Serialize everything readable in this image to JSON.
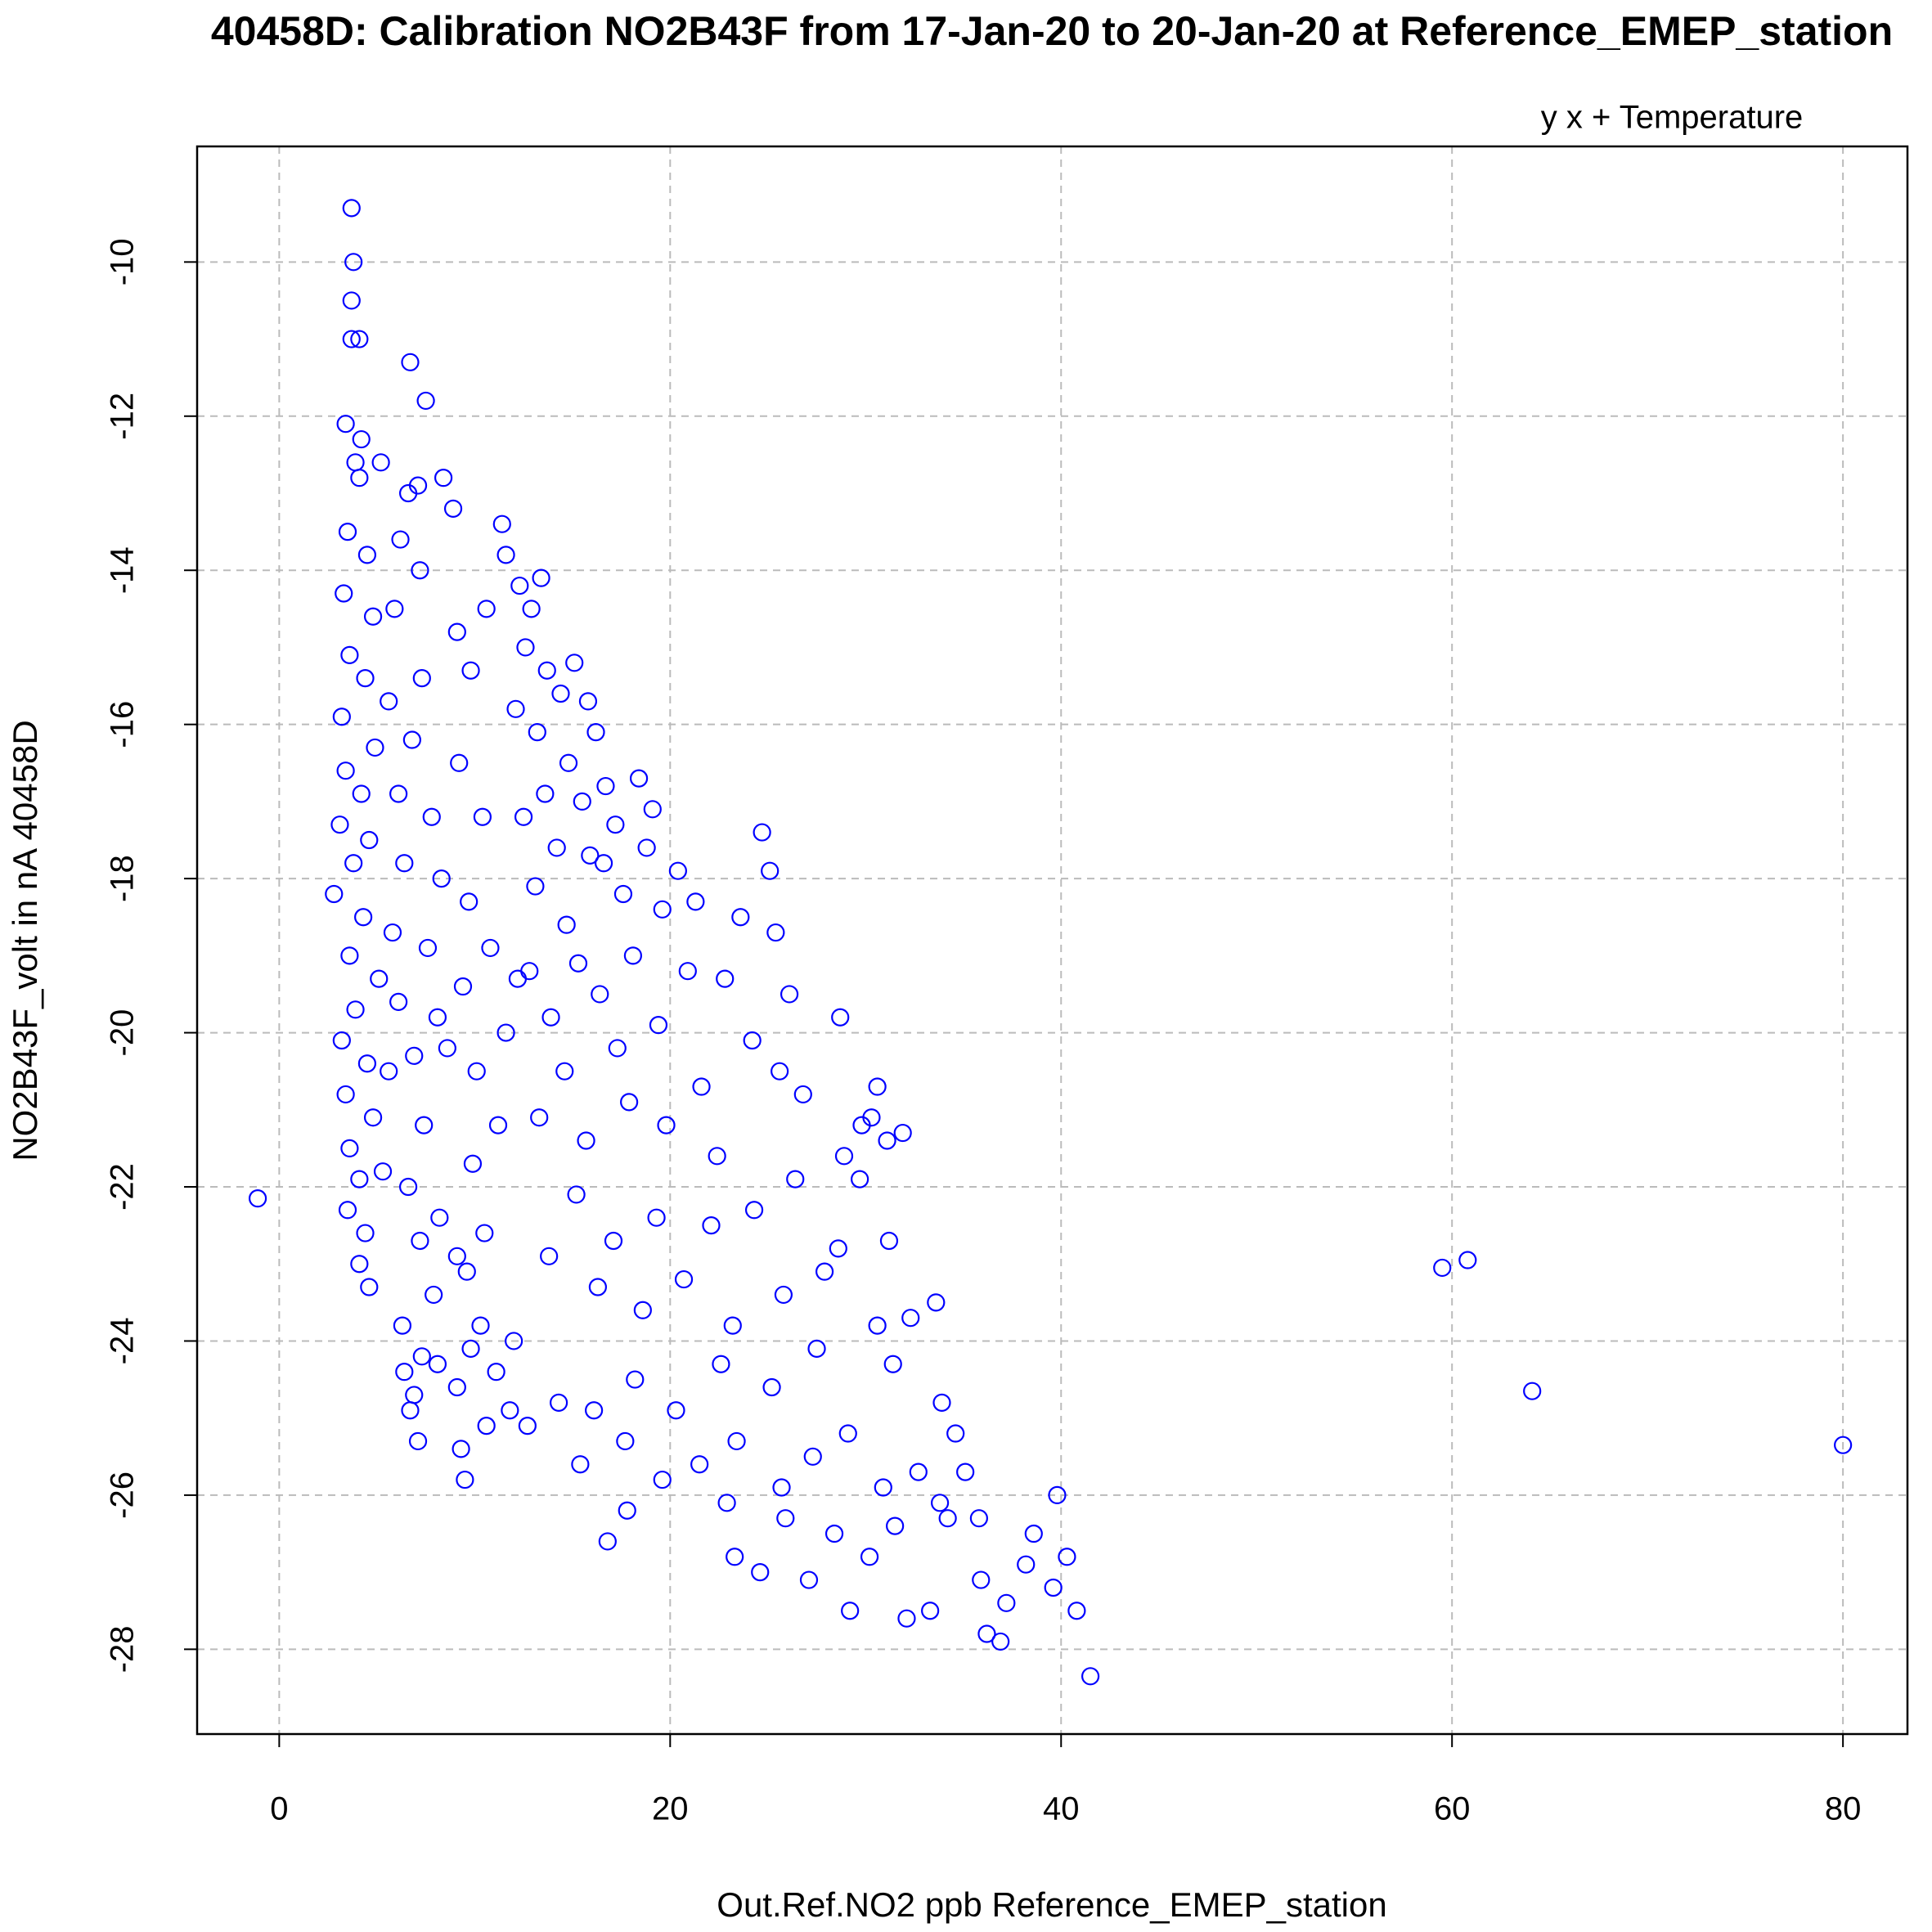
{
  "chart_data": {
    "type": "scatter",
    "title": "40458D: Calibration NO2B43F from 17-Jan-20 to 20-Jan-20 at Reference_EMEP_station",
    "annotation": "y x + Temperature",
    "annotation_color": "#ff0000",
    "x_label": "Out.Ref.NO2 ppb Reference_EMEP_station",
    "y_label": "NO2B43F_volt in nA 40458D",
    "color": "#0000ff",
    "grid": true,
    "xlim": [
      -4.2,
      83.3
    ],
    "ylim": [
      -29.1,
      -8.5
    ],
    "xticks": [
      0,
      20,
      40,
      60,
      80
    ],
    "yticks": [
      -28,
      -26,
      -24,
      -22,
      -20,
      -18,
      -16,
      -14,
      -12,
      -10
    ],
    "x": [
      -1.1,
      3.7,
      3.8,
      3.7,
      3.7,
      4.1,
      6.7,
      7.5,
      3.4,
      4.2,
      3.9,
      4.1,
      5.2,
      6.6,
      7.1,
      8.4,
      8.9,
      3.5,
      4.5,
      6.2,
      7.2,
      3.3,
      4.8,
      5.9,
      3.6,
      4.4,
      5.6,
      3.2,
      4.9,
      3.4,
      4.2,
      3.1,
      4.6,
      3.8,
      2.8,
      4.3,
      3.6,
      5.1,
      3.9,
      3.2,
      4.5,
      3.4,
      4.8,
      3.6,
      4.1,
      3.5,
      4.4,
      4.1,
      4.6,
      5.3,
      5.6,
      6.1,
      5.8,
      6.4,
      6.1,
      6.8,
      7.3,
      7.8,
      8.3,
      7.6,
      8.1,
      6.9,
      7.4,
      8.6,
      6.6,
      7.2,
      8.2,
      9.1,
      7.9,
      6.3,
      6.4,
      6.7,
      7.1,
      6.9,
      7.3,
      8.1,
      9.1,
      9.3,
      9.5,
      9.8,
      10.3,
      11.1,
      12,
      10.6,
      11.8,
      9.6,
      10.5,
      9.9,
      11.2,
      10.1,
      11.6,
      9.4,
      10.8,
      12.2,
      9.7,
      10.4,
      9.2,
      9.8,
      9.1,
      10.6,
      11.4,
      11.6,
      12.3,
      12.9,
      13.4,
      12.6,
      13.7,
      12.1,
      13.2,
      14.4,
      15.1,
      15.8,
      16.2,
      14.8,
      13.6,
      12.5,
      15.5,
      16.7,
      17.2,
      14.2,
      15.9,
      13.1,
      16.6,
      18.4,
      19.1,
      18.8,
      17.6,
      14.7,
      12.8,
      13.9,
      15.3,
      16.4,
      18.1,
      19.6,
      20.4,
      21.3,
      20.9,
      19.4,
      17.3,
      14.6,
      13.3,
      15.7,
      17.9,
      19.8,
      21.6,
      22.8,
      23.6,
      24.7,
      25.1,
      25.4,
      26.1,
      24.2,
      22.4,
      25.6,
      26.8,
      28.7,
      30.6,
      30.3,
      29.8,
      31.1,
      31.9,
      28.9,
      29.7,
      26.4,
      24.3,
      22.1,
      19.3,
      17.1,
      15.2,
      13.8,
      16.3,
      18.6,
      20.7,
      23.2,
      25.8,
      27.9,
      28.6,
      31.2,
      30.6,
      32.3,
      33.6,
      27.5,
      25.2,
      22.6,
      20.3,
      18.2,
      16.1,
      14.3,
      12.7,
      15.4,
      17.7,
      19.6,
      21.5,
      23.4,
      25.7,
      27.3,
      29.1,
      31.4,
      33.9,
      34.6,
      17.8,
      16.8,
      22.9,
      23.3,
      24.6,
      25.9,
      27.1,
      28.4,
      29.2,
      30.2,
      31.5,
      32.1,
      33.3,
      33.8,
      35.8,
      35.9,
      36.2,
      36.9,
      37.2,
      38.2,
      38.6,
      39.8,
      39.6,
      40.3,
      40.8,
      41.5,
      59.5,
      60.8,
      64.1,
      80,
      35.1,
      32.7,
      34.2,
      30.9
    ],
    "y": [
      -22.15,
      -9.3,
      -10,
      -10.5,
      -11,
      -11,
      -11.3,
      -11.8,
      -12.1,
      -12.3,
      -12.6,
      -12.8,
      -12.6,
      -13,
      -12.9,
      -12.8,
      -13.2,
      -13.5,
      -13.8,
      -13.6,
      -14,
      -14.3,
      -14.6,
      -14.5,
      -15.1,
      -15.4,
      -15.7,
      -15.9,
      -16.3,
      -16.6,
      -16.9,
      -17.3,
      -17.5,
      -17.8,
      -18.2,
      -18.5,
      -19,
      -19.3,
      -19.7,
      -20.1,
      -20.4,
      -20.8,
      -21.1,
      -21.5,
      -21.9,
      -22.3,
      -22.6,
      -23,
      -23.3,
      -21.8,
      -20.5,
      -19.6,
      -18.7,
      -17.8,
      -16.9,
      -16.2,
      -15.4,
      -17.2,
      -18,
      -18.9,
      -19.8,
      -20.3,
      -21.2,
      -20.2,
      -22,
      -22.7,
      -22.4,
      -22.9,
      -23.4,
      -23.8,
      -24.4,
      -24.9,
      -25.3,
      -24.7,
      -24.2,
      -24.3,
      -24.6,
      -25.4,
      -25.8,
      -24.1,
      -23.8,
      -24.4,
      -24,
      -25.1,
      -24.9,
      -23.1,
      -22.6,
      -21.7,
      -21.2,
      -20.5,
      -20,
      -19.4,
      -18.9,
      -19.3,
      -18.3,
      -17.2,
      -16.5,
      -15.3,
      -14.8,
      -14.5,
      -13.4,
      -13.8,
      -14.2,
      -14.5,
      -14.1,
      -15,
      -15.3,
      -15.8,
      -16.1,
      -15.6,
      -15.2,
      -15.7,
      -16.1,
      -16.5,
      -16.9,
      -17.2,
      -17,
      -16.8,
      -17.3,
      -17.6,
      -17.7,
      -18.1,
      -17.8,
      -16.7,
      -17.1,
      -17.6,
      -18.2,
      -18.6,
      -19.2,
      -19.8,
      -19.1,
      -19.5,
      -19,
      -18.4,
      -17.9,
      -18.3,
      -19.2,
      -19.9,
      -20.2,
      -20.5,
      -21.1,
      -21.4,
      -20.9,
      -21.2,
      -20.7,
      -19.3,
      -18.5,
      -17.4,
      -17.9,
      -18.7,
      -19.5,
      -20.1,
      -21.6,
      -20.5,
      -20.8,
      -19.8,
      -20.7,
      -21.1,
      -21.2,
      -21.4,
      -21.3,
      -21.6,
      -21.9,
      -21.9,
      -22.3,
      -22.5,
      -22.4,
      -22.7,
      -22.1,
      -22.9,
      -23.3,
      -23.6,
      -23.2,
      -23.8,
      -23.4,
      -23.1,
      -22.8,
      -22.7,
      -23.8,
      -23.7,
      -23.5,
      -24.1,
      -24.6,
      -24.3,
      -24.9,
      -24.5,
      -24.9,
      -24.8,
      -25.1,
      -25.6,
      -25.3,
      -25.8,
      -25.6,
      -25.3,
      -25.9,
      -25.5,
      -25.2,
      -24.3,
      -24.8,
      -25.2,
      -26.2,
      -26.6,
      -26.1,
      -26.8,
      -27,
      -26.3,
      -27.1,
      -26.5,
      -27.5,
      -26.8,
      -26.4,
      -27.6,
      -27.5,
      -26.1,
      -26.3,
      -27.1,
      -27.8,
      -27.9,
      -27.4,
      -26.9,
      -26.5,
      -26,
      -27.2,
      -26.8,
      -27.5,
      -28.35,
      -23.05,
      -22.95,
      -24.65,
      -25.35,
      -25.7,
      -25.7,
      -26.3,
      -25.9
    ]
  }
}
